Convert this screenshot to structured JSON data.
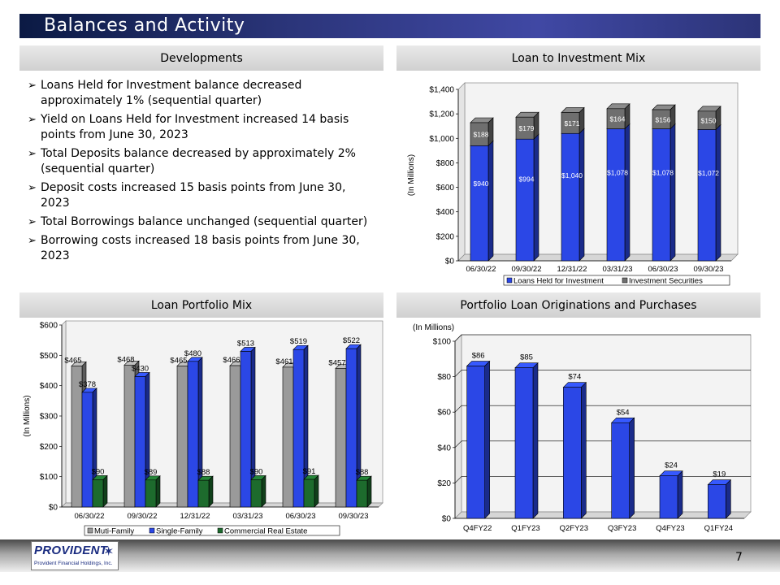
{
  "title": "Balances and Activity",
  "colors": {
    "blue": "#2b47e6",
    "gray": "#9a9a9a",
    "dark_gray": "#6f6f6f",
    "green": "#1d6b2d",
    "plot_bg": "#f3f3f3"
  },
  "developments": {
    "header": "Developments",
    "marker": "➢",
    "items": [
      {
        "lines": [
          "Loans Held for Investment balance decreased",
          "approximately 1% (sequential quarter)"
        ]
      },
      {
        "lines": [
          "Yield on Loans Held for Investment increased 14 basis",
          "points from June 30, 2023"
        ]
      },
      {
        "lines": [
          "Total Deposits balance decreased by approximately 2%",
          "(sequential quarter)"
        ]
      },
      {
        "lines": [
          "Deposit costs increased 15 basis points from June 30,",
          "2023"
        ]
      },
      {
        "lines": [
          "Total Borrowings balance unchanged (sequential quarter)"
        ]
      },
      {
        "lines": [
          "Borrowing costs increased 18 basis points from June 30,",
          "2023"
        ]
      }
    ]
  },
  "loan_investment_header": "Loan to Investment Mix",
  "loan_portfolio_header": "Loan Portfolio Mix",
  "originations_header": "Portfolio Loan Originations and Purchases",
  "chart_data": [
    {
      "id": "loan_investment_mix",
      "type": "bar",
      "stacked": true,
      "title": "Loan to Investment Mix",
      "ylabel": "(In Millions)",
      "ylim": [
        0,
        1400
      ],
      "yticks": [
        0,
        200,
        400,
        600,
        800,
        1000,
        1200,
        1400
      ],
      "ytick_labels": [
        "$0",
        "$200",
        "$400",
        "$600",
        "$800",
        "$1,000",
        "$1,200",
        "$1,400"
      ],
      "categories": [
        "06/30/22",
        "09/30/22",
        "12/31/22",
        "03/31/23",
        "06/30/23",
        "09/30/23"
      ],
      "series": [
        {
          "name": "Loans Held for Investment",
          "values": [
            940,
            994,
            1040,
            1078,
            1078,
            1072
          ],
          "labels": [
            "$940",
            "$994",
            "$1,040",
            "$1,078",
            "$1,078",
            "$1,072"
          ]
        },
        {
          "name": "Investment Securities",
          "values": [
            188,
            179,
            171,
            164,
            156,
            150
          ],
          "labels": [
            "$188",
            "$179",
            "$171",
            "$164",
            "$156",
            "$150"
          ]
        }
      ],
      "legend": "bottom"
    },
    {
      "id": "loan_portfolio_mix",
      "type": "bar",
      "stacked": false,
      "title": "Loan Portfolio Mix",
      "ylabel": "(In Millions)",
      "ylim": [
        0,
        600
      ],
      "yticks": [
        0,
        100,
        200,
        300,
        400,
        500,
        600
      ],
      "ytick_labels": [
        "$0",
        "$100",
        "$200",
        "$300",
        "$400",
        "$500",
        "$600"
      ],
      "categories": [
        "06/30/22",
        "09/30/22",
        "12/31/22",
        "03/31/23",
        "06/30/23",
        "09/30/23"
      ],
      "series": [
        {
          "name": "Muti-Family",
          "values": [
            465,
            468,
            465,
            466,
            461,
            457
          ],
          "labels": [
            "$465",
            "$468",
            "$465",
            "$466",
            "$461",
            "$457"
          ]
        },
        {
          "name": "Single-Family",
          "values": [
            378,
            430,
            480,
            513,
            519,
            522
          ],
          "labels": [
            "$378",
            "$430",
            "$480",
            "$513",
            "$519",
            "$522"
          ]
        },
        {
          "name": "Commercial Real Estate",
          "values": [
            90,
            89,
            88,
            90,
            91,
            88
          ],
          "labels": [
            "$90",
            "$89",
            "$88",
            "$90",
            "$91",
            "$88"
          ]
        }
      ],
      "legend": "bottom"
    },
    {
      "id": "originations",
      "type": "bar",
      "stacked": false,
      "title": "Portfolio Loan Originations and Purchases",
      "ylabel": "(In Millions)",
      "ylim": [
        0,
        100
      ],
      "yticks": [
        0,
        20,
        40,
        60,
        80,
        100
      ],
      "ytick_labels": [
        "$0",
        "$20",
        "$40",
        "$60",
        "$80",
        "$100"
      ],
      "categories": [
        "Q4FY22",
        "Q1FY23",
        "Q2FY23",
        "Q3FY23",
        "Q4FY23",
        "Q1FY24"
      ],
      "series": [
        {
          "name": "Originations",
          "values": [
            86,
            85,
            74,
            54,
            24,
            19
          ],
          "labels": [
            "$86",
            "$85",
            "$74",
            "$54",
            "$24",
            "$19"
          ]
        }
      ]
    }
  ],
  "footer": {
    "logo_text": "PROVIDENT",
    "logo_subtext": "Provident Financial Holdings, Inc.",
    "page_number": "7"
  }
}
